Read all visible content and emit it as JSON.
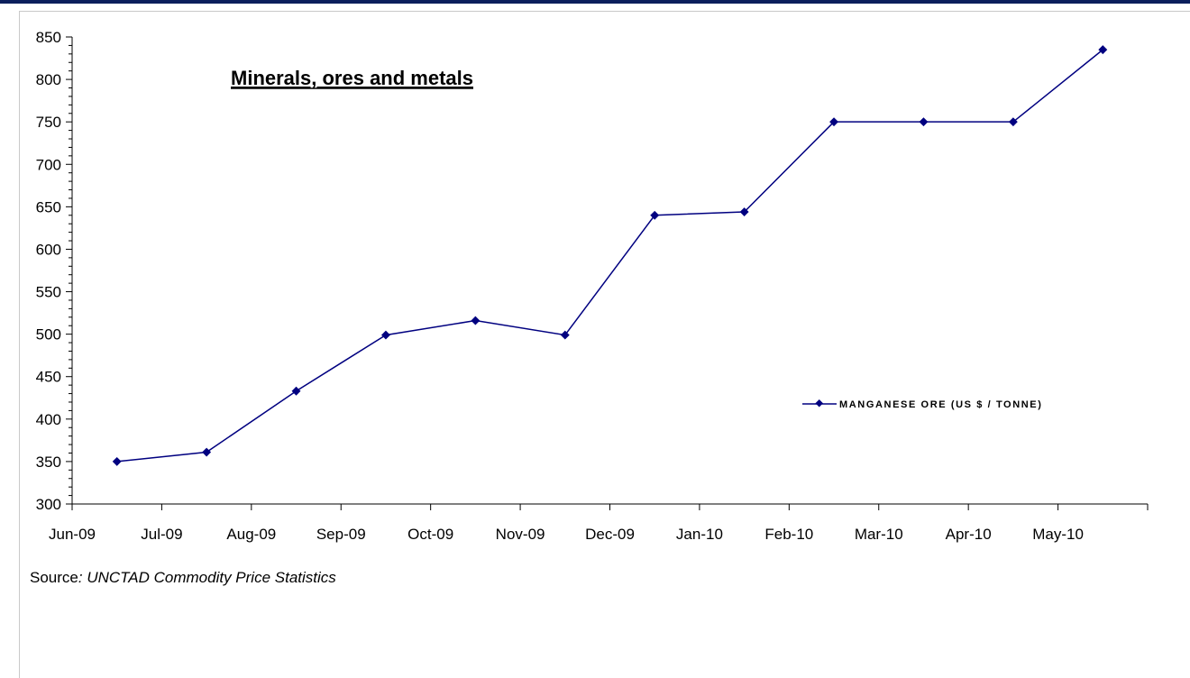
{
  "chart_data": {
    "type": "line",
    "title": "Minerals, ores and metals",
    "categories": [
      "Jun-09",
      "Jul-09",
      "Aug-09",
      "Sep-09",
      "Oct-09",
      "Nov-09",
      "Dec-09",
      "Jan-10",
      "Feb-10",
      "Mar-10",
      "Apr-10",
      "May-10"
    ],
    "series": [
      {
        "name": "MANGANESE ORE (US $ / TONNE)",
        "color": "#000080",
        "values": [
          350,
          361,
          433,
          499,
          516,
          499,
          640,
          644,
          750,
          750,
          750,
          835
        ]
      }
    ],
    "ylim": [
      300,
      850
    ],
    "yticks": [
      300,
      350,
      400,
      450,
      500,
      550,
      600,
      650,
      700,
      750,
      800,
      850
    ],
    "legend_position": "right-middle",
    "grid": false
  },
  "source": {
    "prefix": "Source",
    "italic_text": ": UNCTAD Commodity Price Statistics"
  }
}
